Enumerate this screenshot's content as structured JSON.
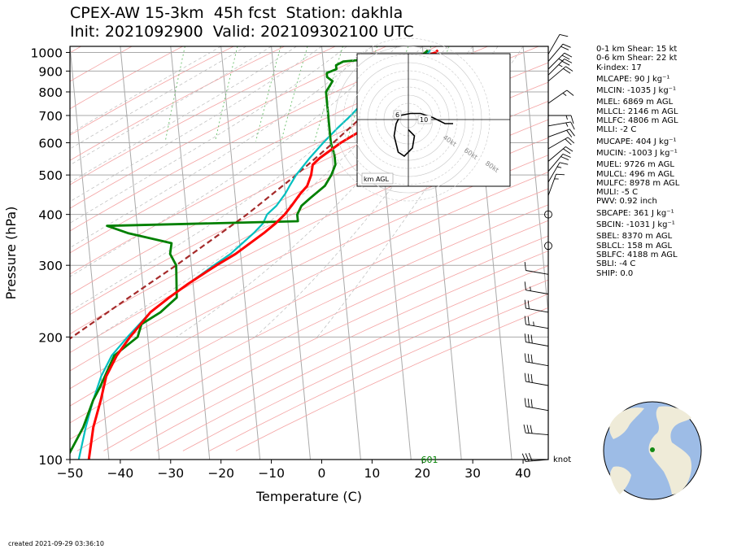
{
  "title_line1": "CPEX-AW 15-3km  45h fcst  Station: dakhla",
  "title_line2": "Init: 2021092900  Valid: 202109302100 UTC",
  "created": "created 2021-09-29 03:36:10",
  "knot_label": "knot",
  "indices": [
    "0-1 km Shear: 15 kt",
    "0-6 km Shear: 22 kt",
    "K-index: 17",
    "MLCAPE: 90 J kg⁻¹",
    "MLCIN: -1035 J kg⁻¹",
    "MLEL: 6869 m AGL",
    "MLLCL: 2146 m AGL",
    "MLLFC: 4806 m AGL",
    "MLLI: -2 C",
    "MUCAPE: 404 J kg⁻¹",
    "MUCIN: -1003 J kg⁻¹",
    "MUEL: 9726 m AGL",
    "MULCL: 496 m AGL",
    "MULFC: 8978 m AGL",
    "MULI: -5 C",
    "PWV: 0.92 inch",
    "SBCAPE: 361 J kg⁻¹",
    "SBCIN: -1031 J kg⁻¹",
    "SBEL: 8370 m AGL",
    "SBLCL: 158 m AGL",
    "SBLFC: 4188 m AGL",
    "SBLI: -4 C",
    "SHIP: 0.0"
  ],
  "hodograph": {
    "agl_label": "km AGL",
    "height_labels": [
      "6",
      "10"
    ],
    "speed_labels": [
      "40kt",
      "60kt",
      "80kt"
    ],
    "trace": [
      [
        0,
        -5
      ],
      [
        3,
        -8
      ],
      [
        2,
        -14
      ],
      [
        -2,
        -18
      ],
      [
        -5,
        -16
      ],
      [
        -7,
        -8
      ],
      [
        -6,
        -2
      ],
      [
        -4,
        2
      ],
      [
        1,
        3
      ],
      [
        6,
        3
      ],
      [
        12,
        1
      ],
      [
        18,
        -2
      ],
      [
        22,
        -2
      ]
    ]
  },
  "chart_data": {
    "type": "skewt",
    "xlabel": "Temperature (C)",
    "ylabel": "Pressure (hPa)",
    "xlim": [
      -50,
      45
    ],
    "ylim": [
      1035,
      100
    ],
    "x_ticks": [
      -50,
      -40,
      -30,
      -20,
      -10,
      0,
      10,
      20,
      30,
      40
    ],
    "y_ticks": [
      100,
      200,
      300,
      400,
      500,
      600,
      700,
      800,
      900,
      1000
    ],
    "grid": true,
    "bottom_annotation": "601",
    "colors": {
      "temperature": "#ff0000",
      "dewpoint": "#008000",
      "wetbulb": "#00bfbf",
      "parcel": "#a52a2a"
    },
    "temperature": [
      {
        "p": 1013,
        "t": 23
      },
      {
        "p": 1000,
        "t": 22.5
      },
      {
        "p": 990,
        "t": 21.5
      },
      {
        "p": 980,
        "t": 31
      },
      {
        "p": 960,
        "t": 36.5
      },
      {
        "p": 940,
        "t": 36.5
      },
      {
        "p": 920,
        "t": 35
      },
      {
        "p": 900,
        "t": 32.5
      },
      {
        "p": 850,
        "t": 27
      },
      {
        "p": 800,
        "t": 22
      },
      {
        "p": 700,
        "t": 12
      },
      {
        "p": 650,
        "t": 7
      },
      {
        "p": 600,
        "t": 2
      },
      {
        "p": 550,
        "t": -2.5
      },
      {
        "p": 530,
        "t": -4
      },
      {
        "p": 500,
        "t": -4.5
      },
      {
        "p": 470,
        "t": -5.5
      },
      {
        "p": 450,
        "t": -7
      },
      {
        "p": 420,
        "t": -9
      },
      {
        "p": 400,
        "t": -10.5
      },
      {
        "p": 380,
        "t": -12.5
      },
      {
        "p": 360,
        "t": -15
      },
      {
        "p": 320,
        "t": -21
      },
      {
        "p": 300,
        "t": -25
      },
      {
        "p": 270,
        "t": -31
      },
      {
        "p": 250,
        "t": -35
      },
      {
        "p": 230,
        "t": -39
      },
      {
        "p": 200,
        "t": -43.5
      },
      {
        "p": 180,
        "t": -46.5
      },
      {
        "p": 160,
        "t": -49
      },
      {
        "p": 140,
        "t": -50.5
      },
      {
        "p": 120,
        "t": -52.5
      },
      {
        "p": 100,
        "t": -54
      }
    ],
    "dewpoint": [
      {
        "p": 1013,
        "t": 21
      },
      {
        "p": 1000,
        "t": 20.5
      },
      {
        "p": 990,
        "t": 20
      },
      {
        "p": 950,
        "t": 4
      },
      {
        "p": 930,
        "t": 2.5
      },
      {
        "p": 910,
        "t": 2.5
      },
      {
        "p": 890,
        "t": 0.5
      },
      {
        "p": 870,
        "t": 0.5
      },
      {
        "p": 850,
        "t": 1.5
      },
      {
        "p": 800,
        "t": 0
      },
      {
        "p": 750,
        "t": 0
      },
      {
        "p": 700,
        "t": 0
      },
      {
        "p": 650,
        "t": 0
      },
      {
        "p": 600,
        "t": 0
      },
      {
        "p": 560,
        "t": 0.5
      },
      {
        "p": 530,
        "t": 0.5
      },
      {
        "p": 500,
        "t": -0.5
      },
      {
        "p": 470,
        "t": -2
      },
      {
        "p": 440,
        "t": -5
      },
      {
        "p": 420,
        "t": -7
      },
      {
        "p": 400,
        "t": -8
      },
      {
        "p": 385,
        "t": -8
      },
      {
        "p": 375,
        "t": -46
      },
      {
        "p": 360,
        "t": -42
      },
      {
        "p": 340,
        "t": -33.5
      },
      {
        "p": 320,
        "t": -34
      },
      {
        "p": 300,
        "t": -33
      },
      {
        "p": 250,
        "t": -33.5
      },
      {
        "p": 230,
        "t": -37
      },
      {
        "p": 215,
        "t": -41
      },
      {
        "p": 200,
        "t": -42
      },
      {
        "p": 180,
        "t": -47
      },
      {
        "p": 150,
        "t": -50.5
      },
      {
        "p": 140,
        "t": -52
      },
      {
        "p": 120,
        "t": -54.5
      },
      {
        "p": 100,
        "t": -58.5
      }
    ],
    "wetbulb": [
      {
        "p": 1013,
        "t": 21.5
      },
      {
        "p": 1000,
        "t": 21
      },
      {
        "p": 980,
        "t": 20
      },
      {
        "p": 960,
        "t": 17.5
      },
      {
        "p": 930,
        "t": 16
      },
      {
        "p": 900,
        "t": 14.5
      },
      {
        "p": 850,
        "t": 12.5
      },
      {
        "p": 800,
        "t": 9.5
      },
      {
        "p": 750,
        "t": 7
      },
      {
        "p": 700,
        "t": 4.5
      },
      {
        "p": 650,
        "t": 1.5
      },
      {
        "p": 600,
        "t": -1.5
      },
      {
        "p": 550,
        "t": -4.5
      },
      {
        "p": 500,
        "t": -7.5
      },
      {
        "p": 470,
        "t": -9
      },
      {
        "p": 450,
        "t": -10
      },
      {
        "p": 420,
        "t": -12
      },
      {
        "p": 400,
        "t": -14
      },
      {
        "p": 380,
        "t": -15
      },
      {
        "p": 360,
        "t": -17
      },
      {
        "p": 320,
        "t": -22
      },
      {
        "p": 300,
        "t": -25.5
      },
      {
        "p": 270,
        "t": -31
      },
      {
        "p": 250,
        "t": -35
      },
      {
        "p": 230,
        "t": -39
      },
      {
        "p": 200,
        "t": -44
      },
      {
        "p": 180,
        "t": -47.5
      },
      {
        "p": 160,
        "t": -50
      },
      {
        "p": 140,
        "t": -52
      },
      {
        "p": 120,
        "t": -54
      },
      {
        "p": 100,
        "t": -56
      }
    ],
    "parcel": [
      {
        "p": 1013,
        "t": 23
      },
      {
        "p": 1000,
        "t": 22.5
      },
      {
        "p": 980,
        "t": 21.5
      },
      {
        "p": 950,
        "t": 20
      },
      {
        "p": 900,
        "t": 17.5
      },
      {
        "p": 850,
        "t": 15
      },
      {
        "p": 800,
        "t": 12.5
      },
      {
        "p": 700,
        "t": 7
      },
      {
        "p": 600,
        "t": 0.5
      },
      {
        "p": 500,
        "t": -7.5
      },
      {
        "p": 400,
        "t": -18
      },
      {
        "p": 300,
        "t": -33
      },
      {
        "p": 250,
        "t": -43
      },
      {
        "p": 200,
        "t": -55
      },
      {
        "p": 150,
        "t": -70
      },
      {
        "p": 100,
        "t": -88
      }
    ],
    "wind_barbs": [
      {
        "p": 100,
        "dir": 265,
        "spd": 30
      },
      {
        "p": 115,
        "dir": 275,
        "spd": 30
      },
      {
        "p": 132,
        "dir": 280,
        "spd": 30
      },
      {
        "p": 152,
        "dir": 280,
        "spd": 30
      },
      {
        "p": 170,
        "dir": 280,
        "spd": 30
      },
      {
        "p": 190,
        "dir": 280,
        "spd": 30
      },
      {
        "p": 210,
        "dir": 280,
        "spd": 25
      },
      {
        "p": 230,
        "dir": 280,
        "spd": 20
      },
      {
        "p": 255,
        "dir": 280,
        "spd": 15
      },
      {
        "p": 285,
        "dir": 280,
        "spd": 10
      },
      {
        "p": 335,
        "dir": 0,
        "spd": 0
      },
      {
        "p": 400,
        "dir": 0,
        "spd": 0
      },
      {
        "p": 445,
        "dir": 20,
        "spd": 15
      },
      {
        "p": 480,
        "dir": 30,
        "spd": 15
      },
      {
        "p": 510,
        "dir": 40,
        "spd": 20
      },
      {
        "p": 540,
        "dir": 50,
        "spd": 20
      },
      {
        "p": 580,
        "dir": 60,
        "spd": 20
      },
      {
        "p": 620,
        "dir": 70,
        "spd": 20
      },
      {
        "p": 660,
        "dir": 80,
        "spd": 15
      },
      {
        "p": 700,
        "dir": 90,
        "spd": 15
      },
      {
        "p": 750,
        "dir": 55,
        "spd": 15
      },
      {
        "p": 850,
        "dir": 50,
        "spd": 20
      },
      {
        "p": 880,
        "dir": 45,
        "spd": 25
      },
      {
        "p": 910,
        "dir": 45,
        "spd": 25
      },
      {
        "p": 950,
        "dir": 40,
        "spd": 20
      },
      {
        "p": 990,
        "dir": 30,
        "spd": 10
      }
    ]
  }
}
